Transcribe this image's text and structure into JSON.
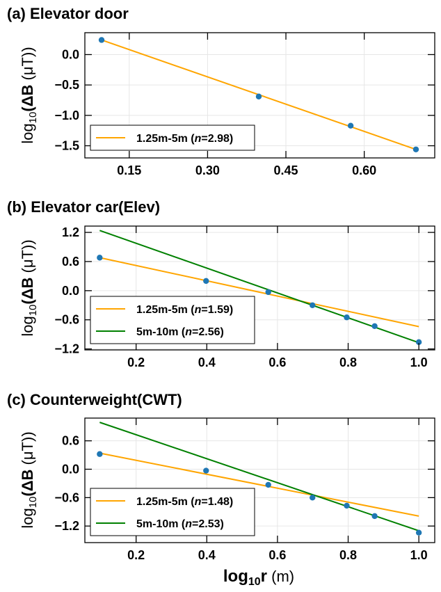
{
  "chart_data": [
    {
      "type": "scatter",
      "title": "(a) Elevator door",
      "ylabel_prefix": "log",
      "ylabel_sub": "10",
      "ylabel_delta": "(ΔB",
      "ylabel_unit": "(μT))",
      "xlim": [
        0.065,
        0.735
      ],
      "ylim": [
        -1.7,
        0.36
      ],
      "xticks": [
        0.15,
        0.3,
        0.45,
        0.6
      ],
      "xtick_labels": [
        "0.15",
        "0.30",
        "0.45",
        "0.60"
      ],
      "yticks": [
        0.0,
        -0.5,
        -1.0,
        -1.5
      ],
      "ytick_labels": [
        "0.0",
        "−0.5",
        "−1.0",
        "−1.5"
      ],
      "points": [
        {
          "x": 0.097,
          "y": 0.24
        },
        {
          "x": 0.398,
          "y": -0.69
        },
        {
          "x": 0.574,
          "y": -1.17
        },
        {
          "x": 0.699,
          "y": -1.56
        }
      ],
      "series": [
        {
          "name": "1.25m-5m (",
          "n_symbol": "n",
          "n_value": "=2.98)",
          "color": "#ffa500",
          "x": [
            0.097,
            0.699
          ],
          "y": [
            0.24,
            -1.56
          ]
        }
      ]
    },
    {
      "type": "scatter",
      "title": "(b) Elevator car(Elev)",
      "ylabel_prefix": "log",
      "ylabel_sub": "10",
      "ylabel_delta": "(ΔB",
      "ylabel_unit": "(μT))",
      "xlim": [
        0.055,
        1.045
      ],
      "ylim": [
        -1.22,
        1.33
      ],
      "xticks": [
        0.2,
        0.4,
        0.6,
        0.8,
        1.0
      ],
      "xtick_labels": [
        "0.2",
        "0.4",
        "0.6",
        "0.8",
        "1.0"
      ],
      "yticks": [
        1.2,
        0.6,
        0.0,
        -0.6,
        -1.2
      ],
      "ytick_labels": [
        "1.2",
        "0.6",
        "0.0",
        "−0.6",
        "−1.2"
      ],
      "points": [
        {
          "x": 0.097,
          "y": 0.68
        },
        {
          "x": 0.398,
          "y": 0.2
        },
        {
          "x": 0.574,
          "y": -0.03
        },
        {
          "x": 0.699,
          "y": -0.3
        },
        {
          "x": 0.796,
          "y": -0.55
        },
        {
          "x": 0.875,
          "y": -0.73
        },
        {
          "x": 1.0,
          "y": -1.06
        }
      ],
      "series": [
        {
          "name": "1.25m-5m (",
          "n_symbol": "n",
          "n_value": "=1.59)",
          "color": "#ffa500",
          "x": [
            0.097,
            1.0
          ],
          "y": [
            0.68,
            -0.74
          ]
        },
        {
          "name": "5m-10m (",
          "n_symbol": "n",
          "n_value": "=2.56)",
          "color": "#008000",
          "x": [
            0.097,
            1.0
          ],
          "y": [
            1.24,
            -1.07
          ]
        }
      ]
    },
    {
      "type": "scatter",
      "title": "(c) Counterweight(CWT)",
      "ylabel_prefix": "log",
      "ylabel_sub": "10",
      "ylabel_delta": "(ΔB",
      "ylabel_unit": "(μT))",
      "xlim": [
        0.055,
        1.045
      ],
      "ylim": [
        -1.55,
        1.08
      ],
      "xticks": [
        0.2,
        0.4,
        0.6,
        0.8,
        1.0
      ],
      "xtick_labels": [
        "0.2",
        "0.4",
        "0.6",
        "0.8",
        "1.0"
      ],
      "yticks": [
        0.6,
        0.0,
        -0.6,
        -1.2
      ],
      "ytick_labels": [
        "0.6",
        "0.0",
        "−0.6",
        "−1.2"
      ],
      "points": [
        {
          "x": 0.097,
          "y": 0.32
        },
        {
          "x": 0.398,
          "y": -0.03
        },
        {
          "x": 0.574,
          "y": -0.33
        },
        {
          "x": 0.699,
          "y": -0.6
        },
        {
          "x": 0.796,
          "y": -0.77
        },
        {
          "x": 0.875,
          "y": -0.99
        },
        {
          "x": 1.0,
          "y": -1.34
        }
      ],
      "series": [
        {
          "name": "1.25m-5m (",
          "n_symbol": "n",
          "n_value": "=1.48)",
          "color": "#ffa500",
          "x": [
            0.097,
            1.0
          ],
          "y": [
            0.34,
            -0.99
          ]
        },
        {
          "name": "5m-10m (",
          "n_symbol": "n",
          "n_value": "=2.53)",
          "color": "#008000",
          "x": [
            0.097,
            1.0
          ],
          "y": [
            0.99,
            -1.3
          ]
        }
      ]
    }
  ],
  "xlabel": {
    "main": "log",
    "sub": "10",
    "var": "r",
    "unit": "(m)"
  },
  "colors": {
    "point": "#1f77b4",
    "grid": "#e6e6e6",
    "axis": "#000000"
  }
}
